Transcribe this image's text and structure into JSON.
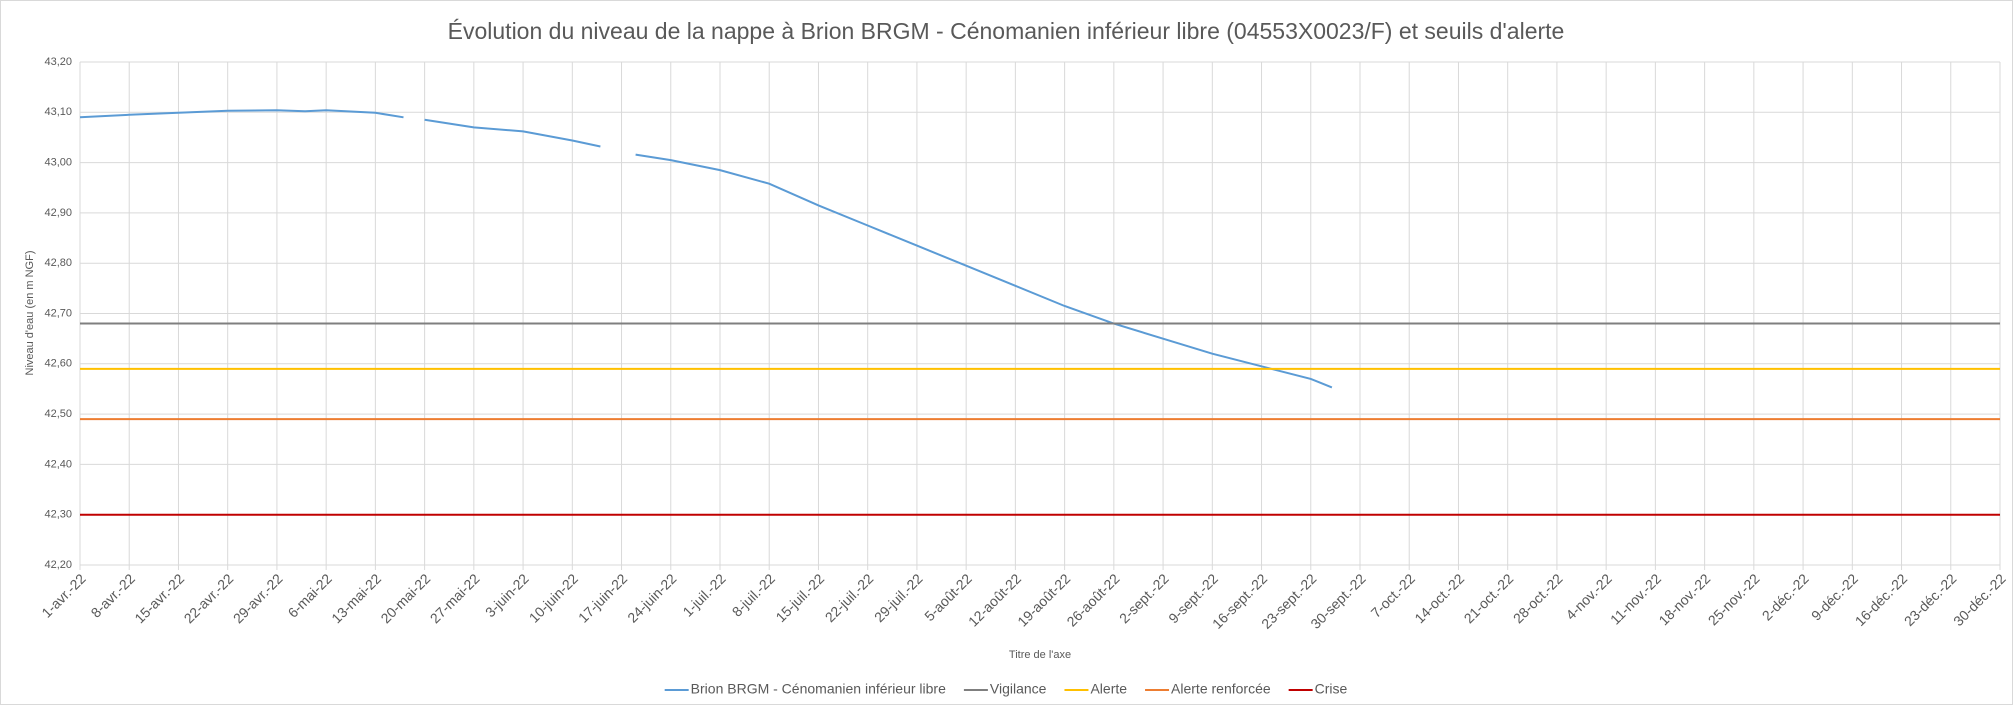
{
  "chart_data": {
    "type": "line",
    "title": "Évolution du niveau de la nappe à Brion BRGM - Cénomanien inférieur libre (04553X0023/F) et seuils d'alerte",
    "x_label": "Titre de l'axe",
    "y_label": "Niveau d'eau (en m NGF)",
    "x": [
      "2022-04-01",
      "2022-04-08",
      "2022-04-15",
      "2022-04-22",
      "2022-04-29",
      "2022-05-03",
      "2022-05-06",
      "2022-05-13",
      "2022-05-17",
      "2022-05-18",
      "2022-05-20",
      "2022-05-27",
      "2022-06-03",
      "2022-06-10",
      "2022-06-14",
      "2022-06-16",
      "2022-06-19",
      "2022-06-24",
      "2022-07-01",
      "2022-07-08",
      "2022-07-15",
      "2022-07-22",
      "2022-07-29",
      "2022-08-05",
      "2022-08-12",
      "2022-08-19",
      "2022-08-26",
      "2022-09-02",
      "2022-09-09",
      "2022-09-16",
      "2022-09-23",
      "2022-09-26"
    ],
    "series": [
      {
        "name": "Brion BRGM - Cénomanien inférieur libre",
        "color": "#5b9bd5",
        "values": [
          43.09,
          43.095,
          43.099,
          43.103,
          43.104,
          43.102,
          43.104,
          43.099,
          43.09,
          null,
          43.085,
          43.07,
          43.062,
          43.044,
          43.032,
          null,
          43.016,
          43.005,
          42.985,
          42.958,
          42.915,
          42.875,
          42.835,
          42.795,
          42.755,
          42.715,
          42.68,
          42.65,
          42.62,
          42.595,
          42.57,
          42.553
        ]
      },
      {
        "name": "Vigilance",
        "color": "#7f7f7f",
        "value": 42.68
      },
      {
        "name": "Alerte",
        "color": "#ffc000",
        "value": 42.59
      },
      {
        "name": "Alerte renforcée",
        "color": "#ed7d31",
        "value": 42.49
      },
      {
        "name": "Crise",
        "color": "#c00000",
        "value": 42.3
      }
    ],
    "xlim": [
      "2022-04-01",
      "2022-12-30"
    ],
    "xticks": [
      {
        "value": "2022-04-01",
        "label": "1-avr.-22"
      },
      {
        "value": "2022-04-08",
        "label": "8-avr.-22"
      },
      {
        "value": "2022-04-15",
        "label": "15-avr.-22"
      },
      {
        "value": "2022-04-22",
        "label": "22-avr.-22"
      },
      {
        "value": "2022-04-29",
        "label": "29-avr.-22"
      },
      {
        "value": "2022-05-06",
        "label": "6-mai-22"
      },
      {
        "value": "2022-05-13",
        "label": "13-mai-22"
      },
      {
        "value": "2022-05-20",
        "label": "20-mai-22"
      },
      {
        "value": "2022-05-27",
        "label": "27-mai-22"
      },
      {
        "value": "2022-06-03",
        "label": "3-juin-22"
      },
      {
        "value": "2022-06-10",
        "label": "10-juin-22"
      },
      {
        "value": "2022-06-17",
        "label": "17-juin-22"
      },
      {
        "value": "2022-06-24",
        "label": "24-juin-22"
      },
      {
        "value": "2022-07-01",
        "label": "1-juil.-22"
      },
      {
        "value": "2022-07-08",
        "label": "8-juil.-22"
      },
      {
        "value": "2022-07-15",
        "label": "15-juil.-22"
      },
      {
        "value": "2022-07-22",
        "label": "22-juil.-22"
      },
      {
        "value": "2022-07-29",
        "label": "29-juil.-22"
      },
      {
        "value": "2022-08-05",
        "label": "5-août-22"
      },
      {
        "value": "2022-08-12",
        "label": "12-août-22"
      },
      {
        "value": "2022-08-19",
        "label": "19-août-22"
      },
      {
        "value": "2022-08-26",
        "label": "26-août-22"
      },
      {
        "value": "2022-09-02",
        "label": "2-sept.-22"
      },
      {
        "value": "2022-09-09",
        "label": "9-sept.-22"
      },
      {
        "value": "2022-09-16",
        "label": "16-sept.-22"
      },
      {
        "value": "2022-09-23",
        "label": "23-sept.-22"
      },
      {
        "value": "2022-09-30",
        "label": "30-sept.-22"
      },
      {
        "value": "2022-10-07",
        "label": "7-oct.-22"
      },
      {
        "value": "2022-10-14",
        "label": "14-oct.-22"
      },
      {
        "value": "2022-10-21",
        "label": "21-oct.-22"
      },
      {
        "value": "2022-10-28",
        "label": "28-oct.-22"
      },
      {
        "value": "2022-11-04",
        "label": "4-nov.-22"
      },
      {
        "value": "2022-11-11",
        "label": "11-nov.-22"
      },
      {
        "value": "2022-11-18",
        "label": "18-nov.-22"
      },
      {
        "value": "2022-11-25",
        "label": "25-nov.-22"
      },
      {
        "value": "2022-12-02",
        "label": "2-déc.-22"
      },
      {
        "value": "2022-12-09",
        "label": "9-déc.-22"
      },
      {
        "value": "2022-12-16",
        "label": "16-déc.-22"
      },
      {
        "value": "2022-12-23",
        "label": "23-déc.-22"
      },
      {
        "value": "2022-12-30",
        "label": "30-déc.-22"
      }
    ],
    "ylim": [
      42.2,
      43.2
    ],
    "yticks": [
      {
        "value": 42.2,
        "label": "42,20"
      },
      {
        "value": 42.3,
        "label": "42,30"
      },
      {
        "value": 42.4,
        "label": "42,40"
      },
      {
        "value": 42.5,
        "label": "42,50"
      },
      {
        "value": 42.6,
        "label": "42,60"
      },
      {
        "value": 42.7,
        "label": "42,70"
      },
      {
        "value": 42.8,
        "label": "42,80"
      },
      {
        "value": 42.9,
        "label": "42,90"
      },
      {
        "value": 43.0,
        "label": "43,00"
      },
      {
        "value": 43.1,
        "label": "43,10"
      },
      {
        "value": 43.2,
        "label": "43,20"
      }
    ],
    "grid": true,
    "legend": "bottom"
  }
}
